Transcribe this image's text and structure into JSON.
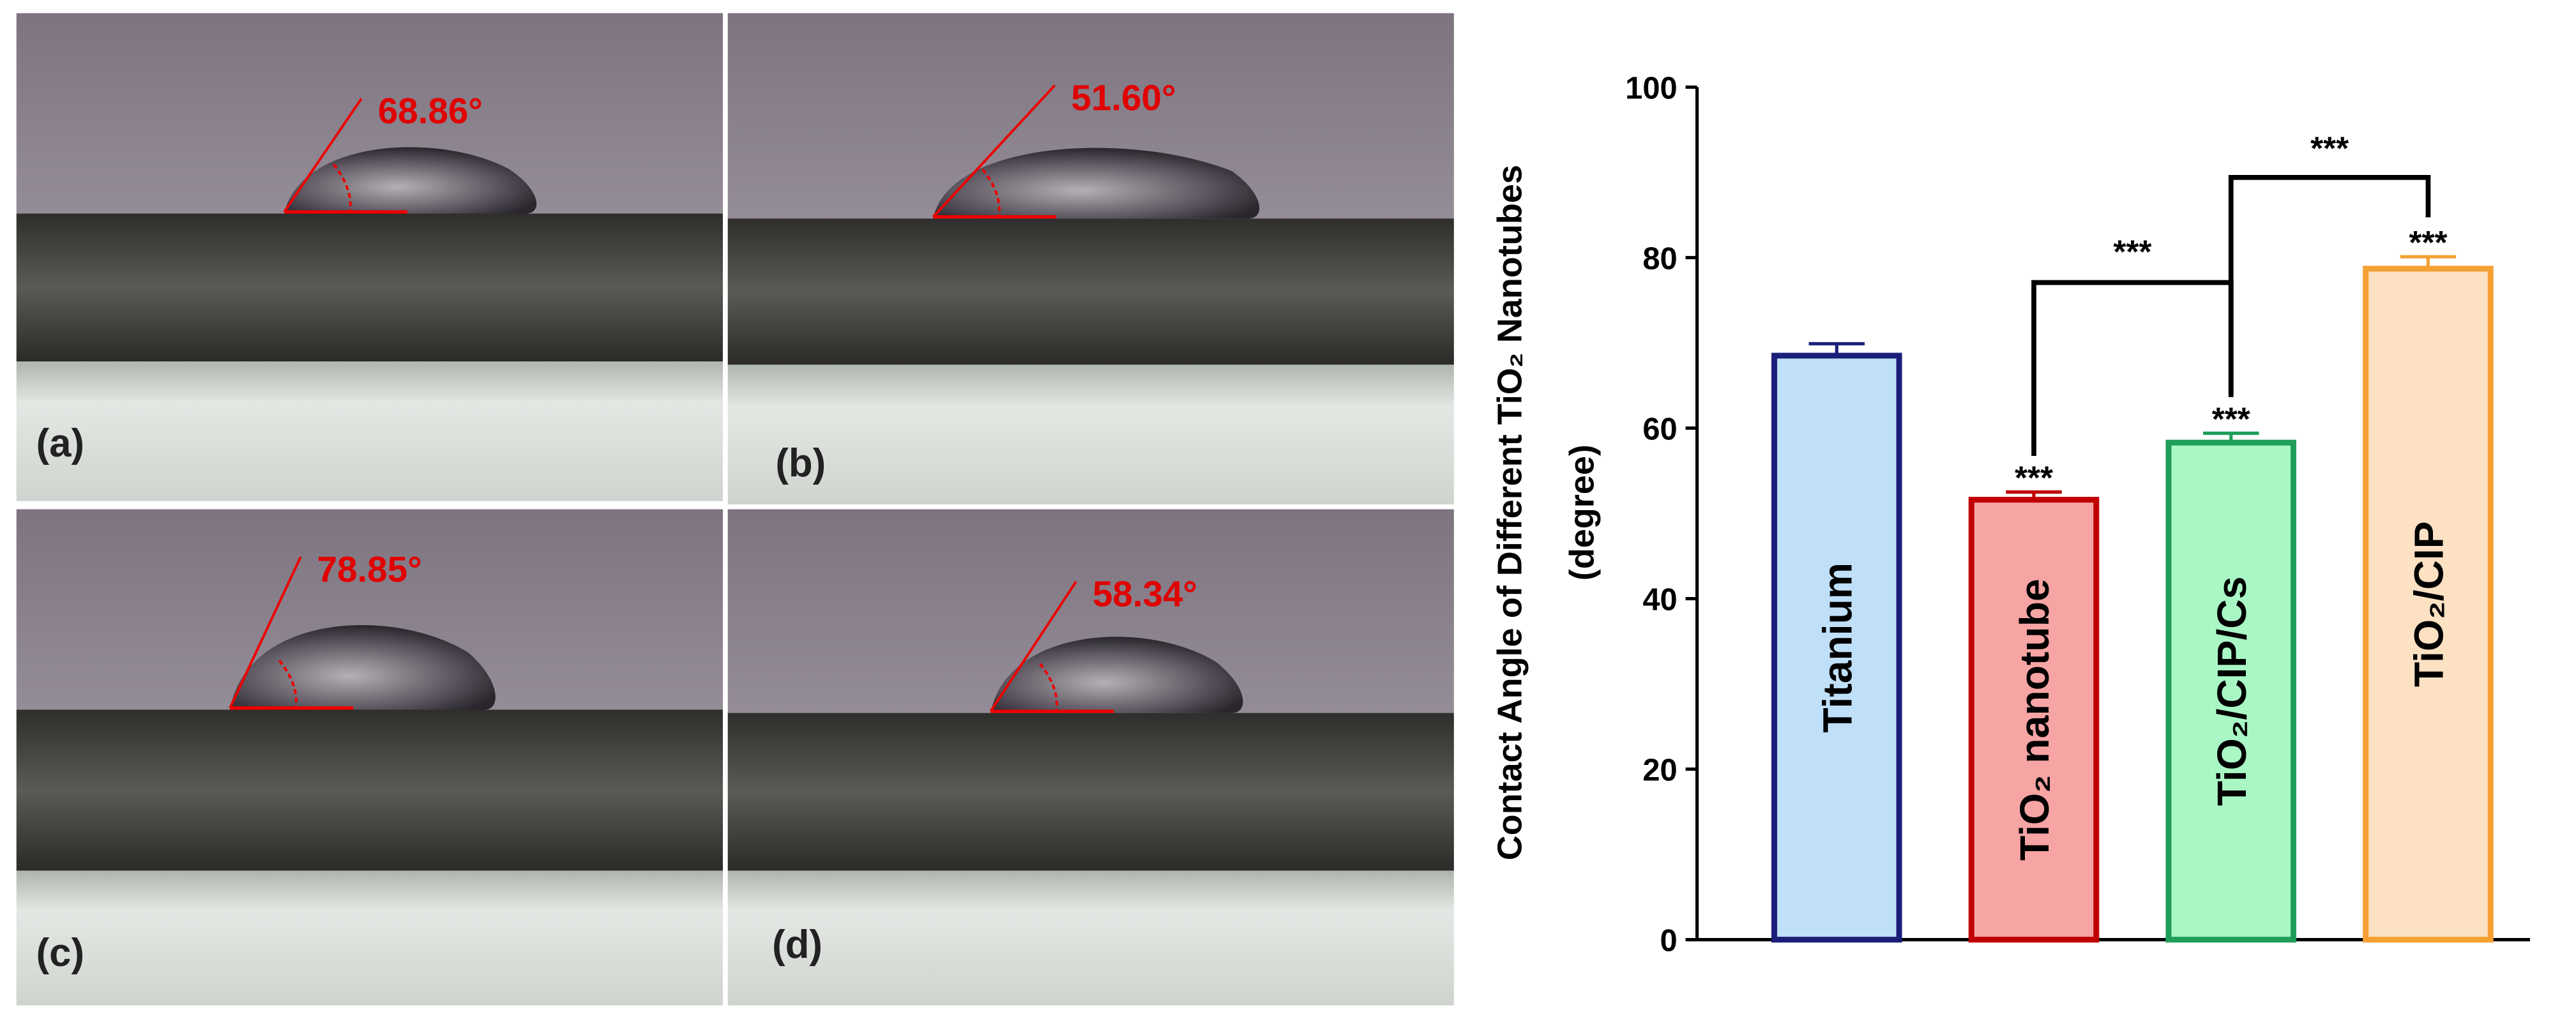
{
  "panels": [
    {
      "label": "(a)",
      "angle": "68.86°"
    },
    {
      "label": "(b)",
      "angle": "51.60°"
    },
    {
      "label": "(c)",
      "angle": "78.85°"
    },
    {
      "label": "(d)",
      "angle": "58.34°"
    }
  ],
  "chart_data": {
    "type": "bar",
    "y_label": [
      "Contact Angle of Different TiO₂ Nanotubes",
      "(degree)"
    ],
    "categories": [
      "Titanium",
      "TiO₂ nanotube",
      "TiO₂/CIP/Cs",
      "TiO₂/CIP"
    ],
    "values": [
      68.5,
      51.6,
      58.3,
      78.7
    ],
    "errors": [
      1.4,
      0.9,
      1.1,
      1.4
    ],
    "colors": [
      "#bfe0f8",
      "#f7a4a4",
      "#aaf7c6",
      "#fde1c3"
    ],
    "edge_colors": [
      "#1b1f7a",
      "#c00000",
      "#1e9e5a",
      "#f5a032"
    ],
    "significance": [
      "",
      "***",
      "***",
      "***"
    ],
    "comparisons": [
      {
        "from": 1,
        "to": 2,
        "label": "***"
      },
      {
        "from": 2,
        "to": 3,
        "label": "***"
      }
    ],
    "ylim": [
      0,
      100
    ],
    "yticks": [
      0,
      20,
      40,
      60,
      80,
      100
    ]
  }
}
